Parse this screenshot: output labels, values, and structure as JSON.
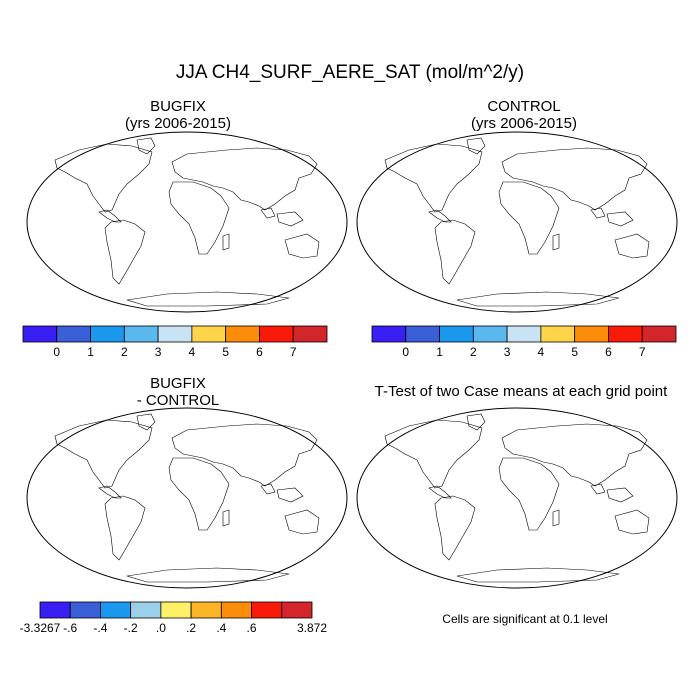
{
  "figure": {
    "title": "JJA CH4_SURF_AERE_SAT (mol/m^2/y)"
  },
  "panels": {
    "bugfix": {
      "title": "BUGFIX",
      "subtitle": "(yrs 2006-2015)"
    },
    "control": {
      "title": "CONTROL",
      "subtitle": "(yrs 2006-2015)"
    },
    "diff": {
      "title": "BUGFIX",
      "subtitle": "- CONTROL"
    },
    "ttest": {
      "title": "T-Test of two Case means at each grid point",
      "note": "Cells are significant at 0.1 level"
    }
  },
  "colorbars": {
    "main": {
      "colors": [
        "#3a1ff5",
        "#3a5fd8",
        "#1a98ee",
        "#5bb8ee",
        "#c8e4f4",
        "#fed54a",
        "#fb8d0a",
        "#f91a0a",
        "#d2262a"
      ],
      "labels": [
        "0",
        "1",
        "2",
        "3",
        "4",
        "5",
        "6",
        "7"
      ]
    },
    "diff": {
      "colors": [
        "#3a1ff5",
        "#3a5fd8",
        "#1a98ee",
        "#9ccfea",
        "#fff06a",
        "#fbb526",
        "#fb8d0a",
        "#f91a0a",
        "#d2262a"
      ],
      "labels": [
        "-3.3267",
        "-.6",
        "-.4",
        "-.2",
        ".0",
        ".2",
        ".4",
        ".6",
        "3.872"
      ]
    }
  },
  "colors": {
    "land_base": "#3a5fd8",
    "diff_base": "#9ccfea",
    "significance": "#e00000"
  }
}
